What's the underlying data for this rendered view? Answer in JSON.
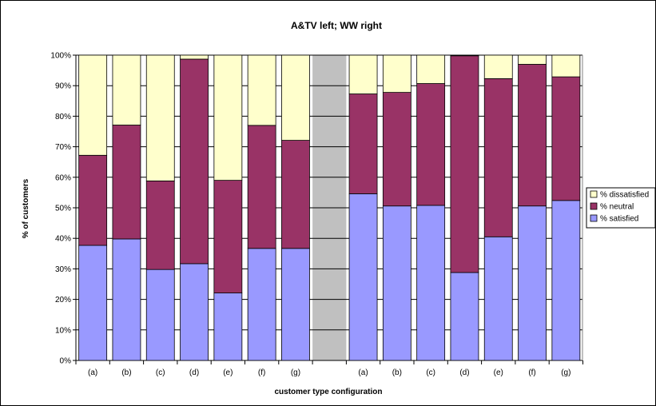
{
  "chart_data": {
    "type": "bar",
    "stacked": true,
    "percent_stacked": true,
    "title": "A&TV left; WW right",
    "xlabel": "customer type configuration",
    "ylabel": "% of customers",
    "ylim": [
      0,
      100
    ],
    "y_ticks": [
      "0%",
      "10%",
      "20%",
      "30%",
      "40%",
      "50%",
      "60%",
      "70%",
      "80%",
      "90%",
      "100%"
    ],
    "grid": true,
    "legend_position": "right",
    "plot_background": "#c0c0c0",
    "groups": [
      {
        "categories": [
          "(a)",
          "(b)",
          "(c)",
          "(d)",
          "(e)",
          "(f)",
          "(g)"
        ]
      },
      {
        "categories": [
          "(a)",
          "(b)",
          "(c)",
          "(d)",
          "(e)",
          "(f)",
          "(g)"
        ]
      }
    ],
    "series": [
      {
        "name": "% satisfied",
        "color": "#9999ff",
        "values": [
          37.7,
          39.8,
          29.8,
          31.7,
          22.1,
          36.7,
          36.7,
          54.6,
          50.6,
          50.8,
          28.8,
          40.5,
          50.6,
          52.4
        ]
      },
      {
        "name": "% neutral",
        "color": "#993366",
        "values": [
          29.5,
          37.3,
          29.0,
          67.0,
          36.9,
          40.3,
          35.4,
          32.7,
          37.2,
          39.9,
          71.0,
          51.8,
          46.4,
          40.5
        ]
      },
      {
        "name": "% dissatisfied",
        "color": "#ffffcc",
        "values": [
          32.8,
          22.9,
          41.2,
          1.3,
          41.0,
          23.0,
          27.9,
          12.7,
          12.2,
          9.3,
          0.2,
          7.7,
          3.0,
          7.1
        ]
      }
    ],
    "legend_order": [
      "% dissatisfied",
      "% neutral",
      "% satisfied"
    ]
  }
}
